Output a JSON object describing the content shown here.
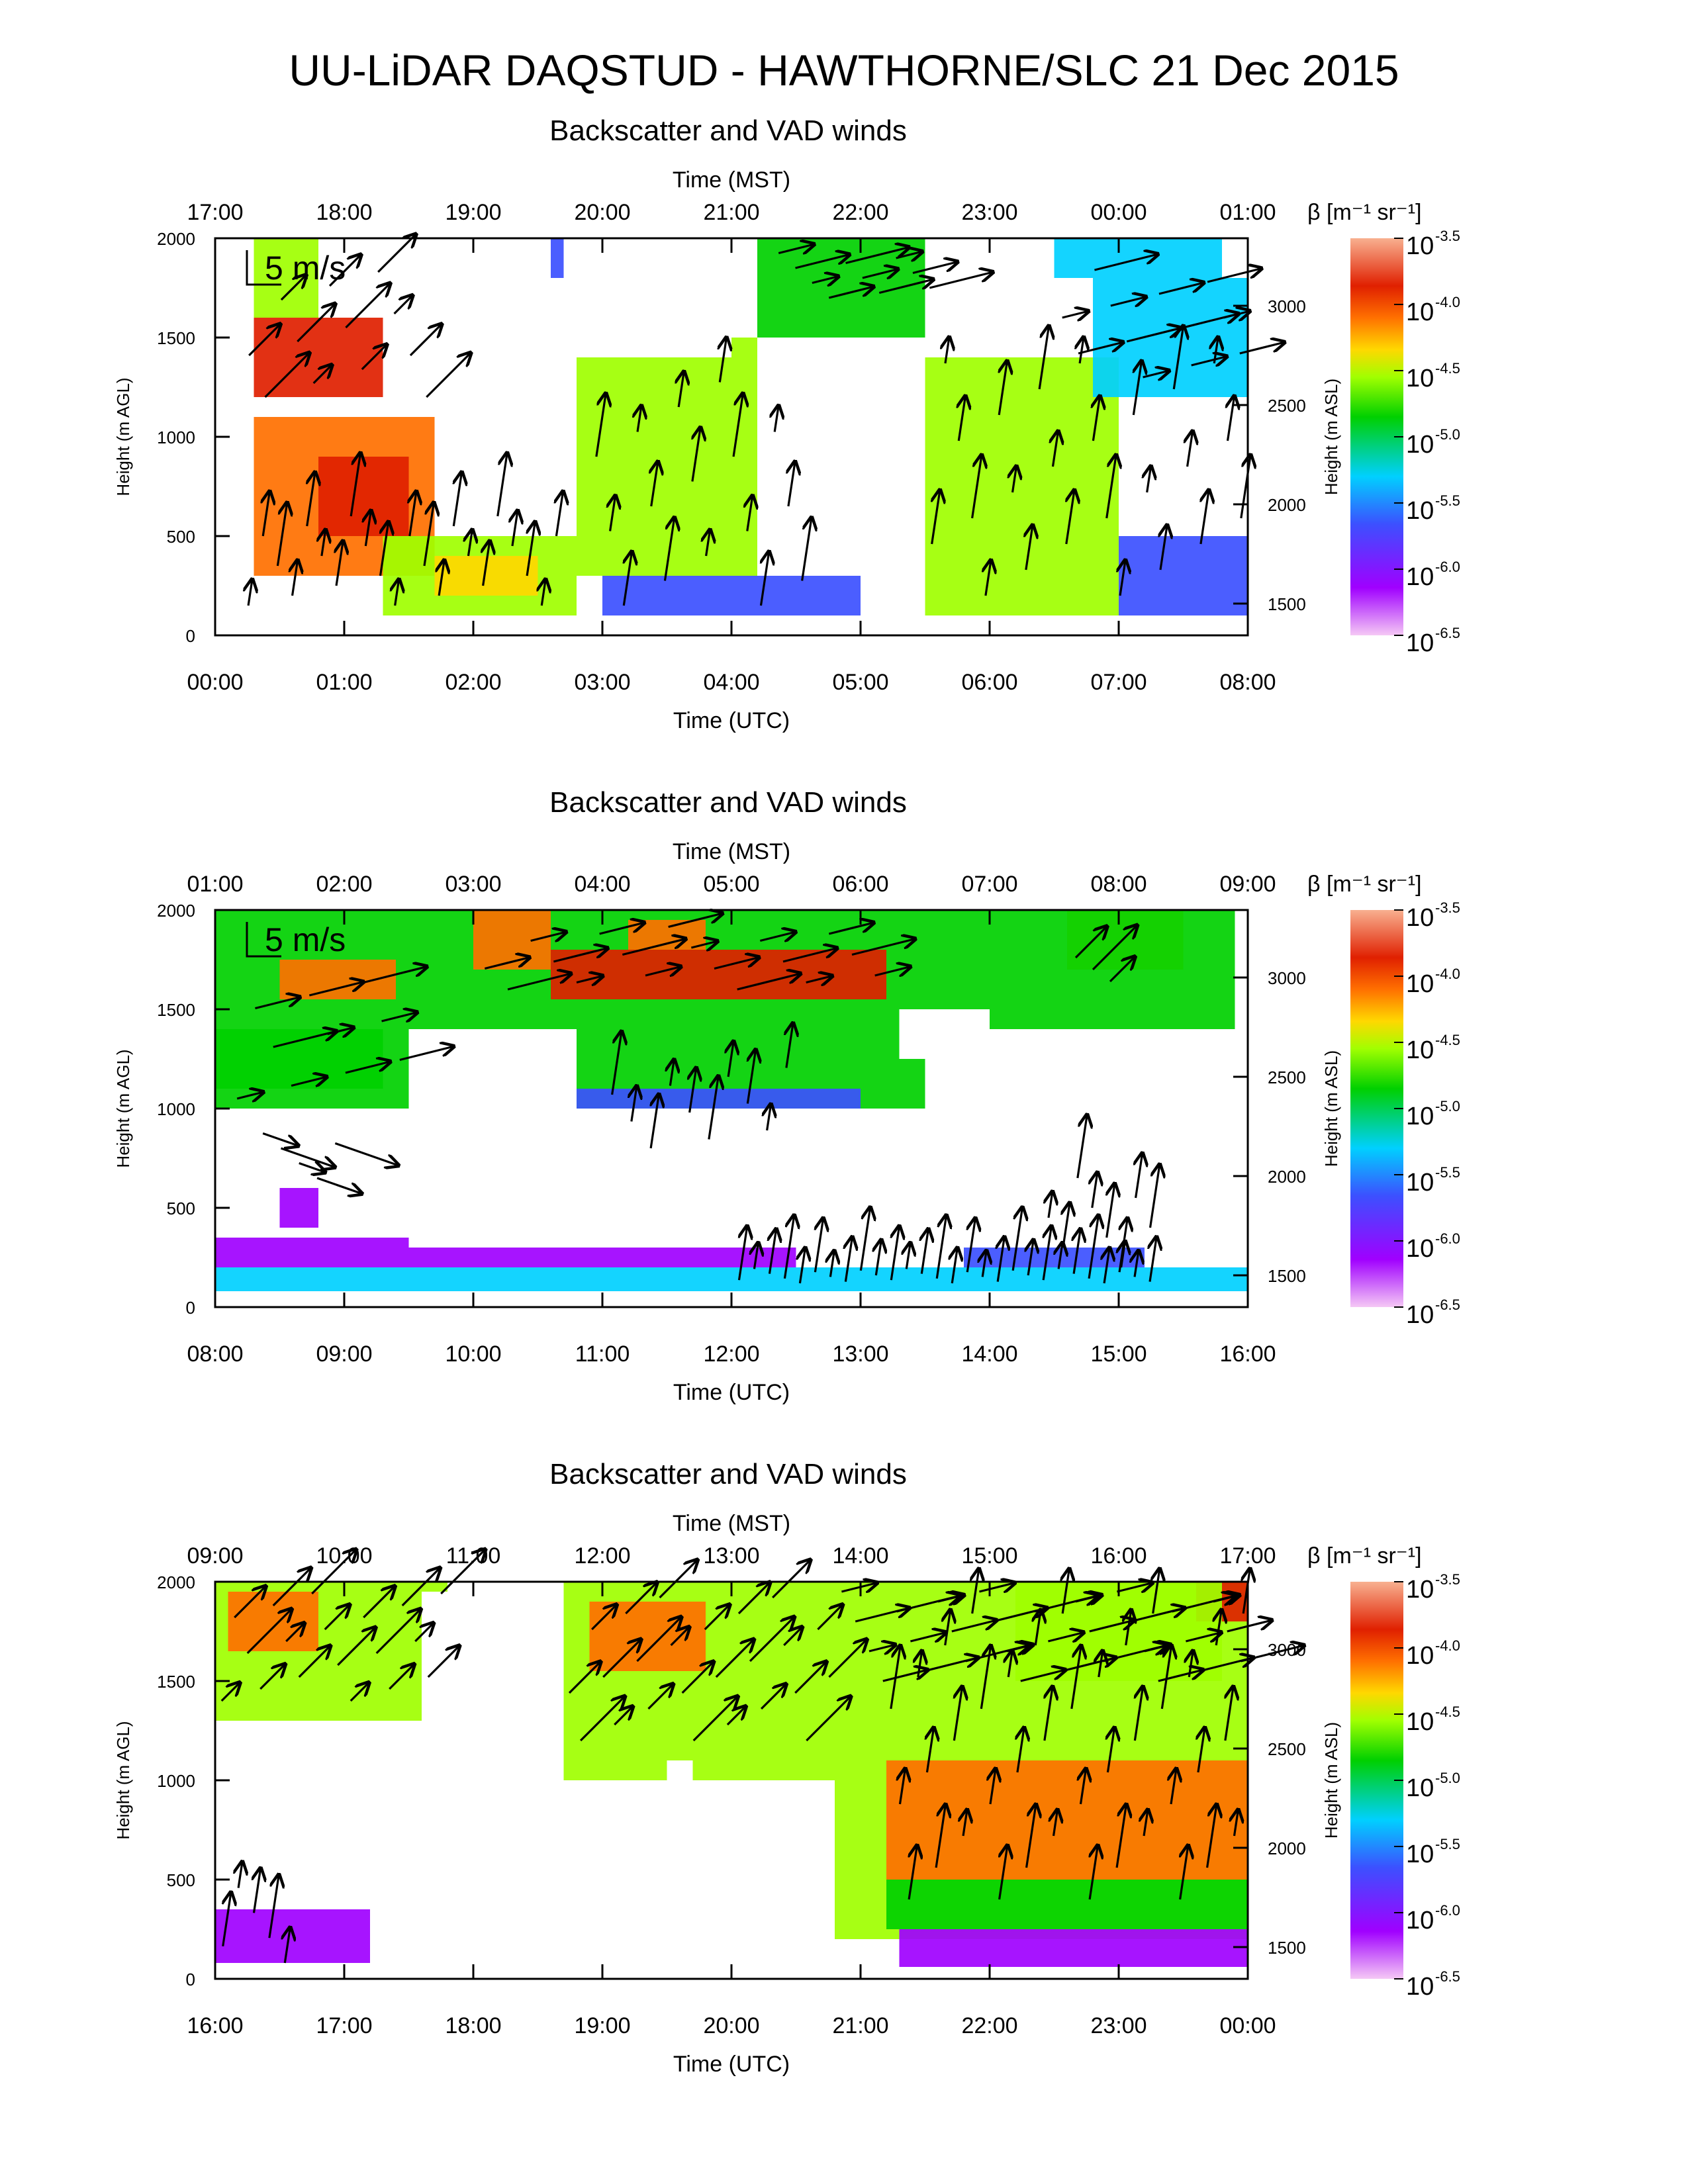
{
  "figure": {
    "title": "UU-LiDAR DAQSTUD - HAWTHORNE/SLC 21 Dec 2015"
  },
  "chart_data": [
    {
      "type": "heatmap",
      "title": "Backscatter and VAD winds",
      "top_axis_label": "Time (MST)",
      "top_ticks": [
        "17:00",
        "18:00",
        "19:00",
        "20:00",
        "21:00",
        "22:00",
        "23:00",
        "00:00",
        "01:00"
      ],
      "xlabel": "Time (UTC)",
      "bottom_ticks": [
        "00:00",
        "01:00",
        "02:00",
        "03:00",
        "04:00",
        "05:00",
        "06:00",
        "07:00",
        "08:00"
      ],
      "ylabel": "Height (m AGL)",
      "ylim": [
        0,
        2000
      ],
      "y_ticks": [
        "0",
        "500",
        "1000",
        "1500",
        "2000"
      ],
      "ylabel_right": "Height (m ASL)",
      "y_right_ticks": [
        "1500",
        "2000",
        "2500",
        "3000"
      ],
      "colorbar": {
        "label": "β [m⁻¹ sr⁻¹]",
        "exponents": [
          "-3.5",
          "-4.0",
          "-4.5",
          "-5.0",
          "-5.5",
          "-6.0",
          "-6.5"
        ]
      },
      "wind_scale_label": "5 m/s",
      "regions": [
        {
          "x": [
            0.3,
            1.3
          ],
          "y": [
            1200,
            1600
          ],
          "c": 0.9
        },
        {
          "x": [
            0.3,
            1.7
          ],
          "y": [
            300,
            1100
          ],
          "c": 0.75
        },
        {
          "x": [
            0.8,
            1.5
          ],
          "y": [
            500,
            900
          ],
          "c": 0.85
        },
        {
          "x": [
            0.3,
            0.8
          ],
          "y": [
            1600,
            2000
          ],
          "c": 0.6
        },
        {
          "x": [
            1.3,
            2.8
          ],
          "y": [
            100,
            500
          ],
          "c": 0.55
        },
        {
          "x": [
            1.7,
            2.5
          ],
          "y": [
            200,
            400
          ],
          "c": 0.65
        },
        {
          "x": [
            2.8,
            4.2
          ],
          "y": [
            300,
            1500
          ],
          "c": 0.5
        },
        {
          "x": [
            4.2,
            5.5
          ],
          "y": [
            1500,
            2000
          ],
          "c": 0.45
        },
        {
          "x": [
            5.5,
            7
          ],
          "y": [
            100,
            1400
          ],
          "c": 0.5
        },
        {
          "x": [
            6.8,
            8
          ],
          "y": [
            1200,
            1800
          ],
          "c": 0.35
        },
        {
          "x": [
            2.6,
            4
          ],
          "y": [
            1800,
            2000
          ],
          "c": 0.25
        },
        {
          "x": [
            3,
            5
          ],
          "y": [
            100,
            300
          ],
          "c": 0.2
        },
        {
          "x": [
            7,
            8
          ],
          "y": [
            100,
            500
          ],
          "c": 0.2
        },
        {
          "x": [
            6.5,
            7.8
          ],
          "y": [
            1800,
            2000
          ],
          "c": 0.3
        }
      ],
      "blanks": [
        {
          "x": [
            0,
            0.25
          ],
          "y": [
            0,
            2000
          ]
        },
        {
          "x": [
            2.7,
            4
          ],
          "y": [
            1400,
            2000
          ]
        },
        {
          "x": [
            4.8,
            5.5
          ],
          "y": [
            350,
            950
          ]
        },
        {
          "x": [
            5.1,
            5.5
          ],
          "y": [
            1100,
            1500
          ]
        },
        {
          "x": [
            6.1,
            6.3
          ],
          "y": [
            1500,
            1900
          ]
        }
      ],
      "wind_rows": [
        {
          "x": [
            0.2,
            2.7
          ],
          "n": 22,
          "y": [
            150,
            650
          ],
          "dir": "up"
        },
        {
          "x": [
            0.2,
            1.7
          ],
          "n": 12,
          "y": [
            1200,
            1900
          ],
          "dir": "ne"
        },
        {
          "x": [
            2.9,
            4.6
          ],
          "n": 16,
          "y": [
            150,
            1400
          ],
          "dir": "up"
        },
        {
          "x": [
            4.3,
            5.6
          ],
          "n": 10,
          "y": [
            1700,
            1950
          ],
          "dir": "east"
        },
        {
          "x": [
            5.5,
            8
          ],
          "n": 24,
          "y": [
            200,
            1500
          ],
          "dir": "up"
        },
        {
          "x": [
            6.5,
            8
          ],
          "n": 12,
          "y": [
            1300,
            1900
          ],
          "dir": "east"
        }
      ]
    },
    {
      "type": "heatmap",
      "title": "Backscatter and VAD winds",
      "top_axis_label": "Time (MST)",
      "top_ticks": [
        "01:00",
        "02:00",
        "03:00",
        "04:00",
        "05:00",
        "06:00",
        "07:00",
        "08:00",
        "09:00"
      ],
      "xlabel": "Time (UTC)",
      "bottom_ticks": [
        "08:00",
        "09:00",
        "10:00",
        "11:00",
        "12:00",
        "13:00",
        "14:00",
        "15:00",
        "16:00"
      ],
      "ylabel": "Height (m AGL)",
      "ylim": [
        0,
        2000
      ],
      "y_ticks": [
        "0",
        "500",
        "1000",
        "1500",
        "2000"
      ],
      "ylabel_right": "Height (m ASL)",
      "y_right_ticks": [
        "1500",
        "2000",
        "2500",
        "3000"
      ],
      "colorbar": {
        "label": "β [m⁻¹ sr⁻¹]",
        "exponents": [
          "-3.5",
          "-4.0",
          "-4.5",
          "-5.0",
          "-5.5",
          "-6.0",
          "-6.5"
        ]
      },
      "wind_scale_label": "5 m/s",
      "regions": [
        {
          "x": [
            0,
            6
          ],
          "y": [
            1000,
            2000
          ],
          "c": 0.45
        },
        {
          "x": [
            0.5,
            1.4
          ],
          "y": [
            1550,
            1750
          ],
          "c": 0.82
        },
        {
          "x": [
            2,
            2.6
          ],
          "y": [
            1700,
            2000
          ],
          "c": 0.8
        },
        {
          "x": [
            2.6,
            5.2
          ],
          "y": [
            1550,
            1800
          ],
          "c": 0.85
        },
        {
          "x": [
            3.2,
            3.8
          ],
          "y": [
            1800,
            1950
          ],
          "c": 0.75
        },
        {
          "x": [
            6.6,
            7.5
          ],
          "y": [
            1700,
            2000
          ],
          "c": 0.7
        },
        {
          "x": [
            6,
            7.9
          ],
          "y": [
            1400,
            2000
          ],
          "c": 0.4
        },
        {
          "x": [
            0,
            1.3
          ],
          "y": [
            1100,
            1400
          ],
          "c": 0.45
        },
        {
          "x": [
            2.8,
            5
          ],
          "y": [
            700,
            1100
          ],
          "c": 0.2
        },
        {
          "x": [
            0,
            8
          ],
          "y": [
            80,
            200
          ],
          "c": 0.3
        },
        {
          "x": [
            0,
            4.5
          ],
          "y": [
            200,
            350
          ],
          "c": 0.1
        },
        {
          "x": [
            5.8,
            7.2
          ],
          "y": [
            200,
            650
          ],
          "c": 0.2
        },
        {
          "x": [
            0.5,
            0.8
          ],
          "y": [
            400,
            600
          ],
          "c": 0.15
        }
      ],
      "blanks": [
        {
          "x": [
            1.5,
            2.8
          ],
          "y": [
            1000,
            1400
          ]
        },
        {
          "x": [
            5.3,
            6
          ],
          "y": [
            1250,
            1500
          ]
        },
        {
          "x": [
            5.5,
            8
          ],
          "y": [
            300,
            1400
          ]
        },
        {
          "x": [
            1.5,
            5.5
          ],
          "y": [
            300,
            1000
          ]
        }
      ],
      "wind_rows": [
        {
          "x": [
            0.1,
            1.5
          ],
          "n": 10,
          "y": [
            1050,
            1700
          ],
          "dir": "east"
        },
        {
          "x": [
            2,
            5.2
          ],
          "n": 18,
          "y": [
            1600,
            1950
          ],
          "dir": "east"
        },
        {
          "x": [
            3,
            4.5
          ],
          "n": 10,
          "y": [
            800,
            1250
          ],
          "dir": "up"
        },
        {
          "x": [
            0.3,
            1
          ],
          "n": 5,
          "y": [
            650,
            900
          ],
          "dir": "se"
        },
        {
          "x": [
            4,
            7.3
          ],
          "n": 28,
          "y": [
            120,
            200
          ],
          "dir": "up"
        },
        {
          "x": [
            6.4,
            7.3
          ],
          "n": 8,
          "y": [
            200,
            700
          ],
          "dir": "up"
        },
        {
          "x": [
            6.6,
            7
          ],
          "n": 3,
          "y": [
            1600,
            1800
          ],
          "dir": "ne"
        }
      ]
    },
    {
      "type": "heatmap",
      "title": "Backscatter and VAD winds",
      "top_axis_label": "Time (MST)",
      "top_ticks": [
        "09:00",
        "10:00",
        "11:00",
        "12:00",
        "13:00",
        "14:00",
        "15:00",
        "16:00",
        "17:00"
      ],
      "xlabel": "Time (UTC)",
      "bottom_ticks": [
        "16:00",
        "17:00",
        "18:00",
        "19:00",
        "20:00",
        "21:00",
        "22:00",
        "23:00",
        "00:00"
      ],
      "ylabel": "Height (m AGL)",
      "ylim": [
        0,
        2000
      ],
      "y_ticks": [
        "0",
        "500",
        "1000",
        "1500",
        "2000"
      ],
      "ylabel_right": "Height (m ASL)",
      "y_right_ticks": [
        "1500",
        "2000",
        "2500",
        "3000"
      ],
      "colorbar": {
        "label": "β [m⁻¹ sr⁻¹]",
        "exponents": [
          "-3.5",
          "-4.0",
          "-4.5",
          "-5.0",
          "-5.5",
          "-6.0",
          "-6.5"
        ]
      },
      "wind_scale_label": "",
      "regions": [
        {
          "x": [
            0,
            1.8
          ],
          "y": [
            1300,
            2000
          ],
          "c": 0.6
        },
        {
          "x": [
            0.1,
            0.8
          ],
          "y": [
            1650,
            1950
          ],
          "c": 0.8
        },
        {
          "x": [
            2.7,
            4.8
          ],
          "y": [
            1000,
            2000
          ],
          "c": 0.55
        },
        {
          "x": [
            2.9,
            3.8
          ],
          "y": [
            1550,
            1900
          ],
          "c": 0.8
        },
        {
          "x": [
            4.8,
            8
          ],
          "y": [
            200,
            2000
          ],
          "c": 0.55
        },
        {
          "x": [
            5.2,
            8
          ],
          "y": [
            500,
            1100
          ],
          "c": 0.78
        },
        {
          "x": [
            5.2,
            8
          ],
          "y": [
            250,
            500
          ],
          "c": 0.45
        },
        {
          "x": [
            5.3,
            8
          ],
          "y": [
            60,
            250
          ],
          "c": 0.15
        },
        {
          "x": [
            0,
            1.2
          ],
          "y": [
            80,
            350
          ],
          "c": 0.15
        },
        {
          "x": [
            7.6,
            8
          ],
          "y": [
            1800,
            2000
          ],
          "c": 0.85
        },
        {
          "x": [
            6.2,
            7.8
          ],
          "y": [
            1500,
            2000
          ],
          "c": 0.6
        }
      ],
      "blanks": [
        {
          "x": [
            1.6,
            2.7
          ],
          "y": [
            600,
            1950
          ]
        },
        {
          "x": [
            0,
            4.8
          ],
          "y": [
            400,
            1000
          ]
        },
        {
          "x": [
            3.5,
            3.7
          ],
          "y": [
            700,
            1100
          ]
        }
      ],
      "wind_rows": [
        {
          "x": [
            0,
            1.8
          ],
          "n": 18,
          "y": [
            1400,
            2000
          ],
          "dir": "ne"
        },
        {
          "x": [
            2.7,
            4.8
          ],
          "n": 24,
          "y": [
            1200,
            2000
          ],
          "dir": "ne"
        },
        {
          "x": [
            5.2,
            8
          ],
          "n": 40,
          "y": [
            400,
            2000
          ],
          "dir": "up"
        },
        {
          "x": [
            4.8,
            8
          ],
          "n": 30,
          "y": [
            1500,
            2000
          ],
          "dir": "east"
        },
        {
          "x": [
            0,
            0.6
          ],
          "n": 5,
          "y": [
            80,
            500
          ],
          "dir": "up"
        }
      ]
    }
  ]
}
